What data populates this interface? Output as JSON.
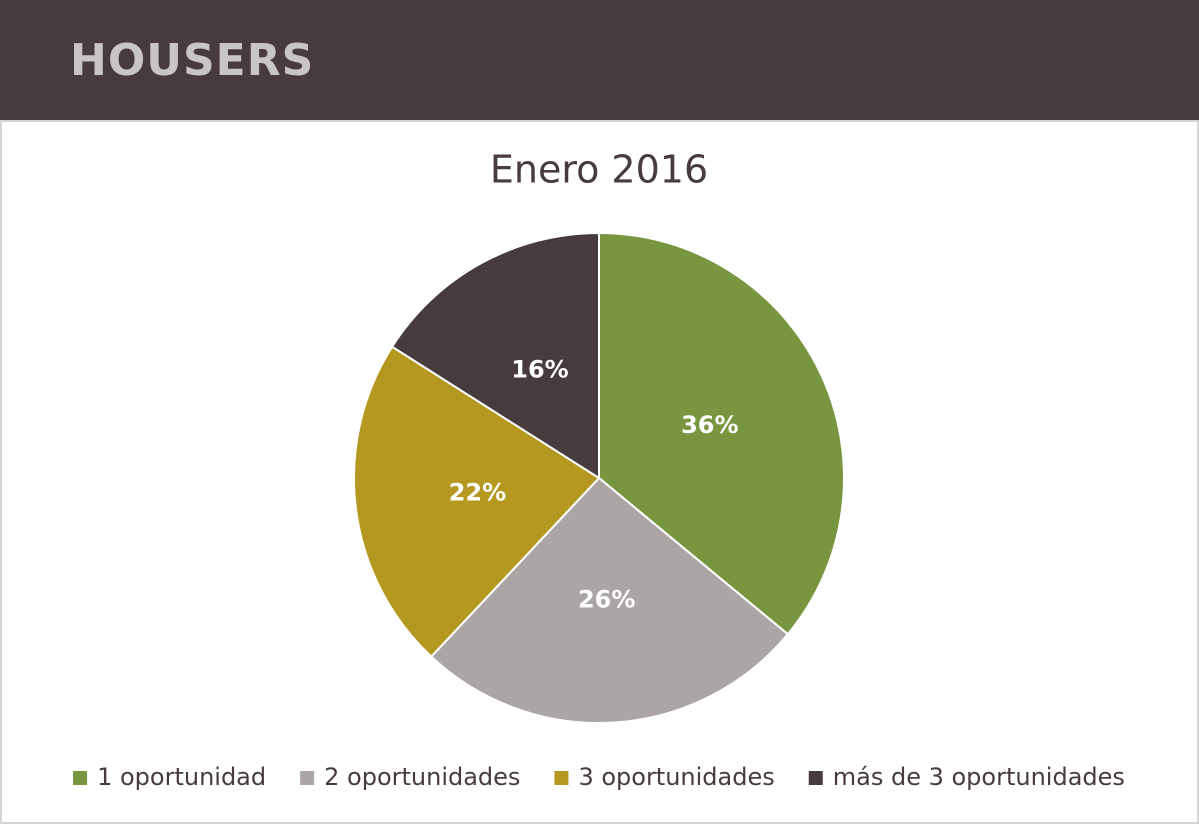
{
  "header": {
    "logo": "HOUSERS"
  },
  "chart_data": {
    "type": "pie",
    "title": "Enero 2016",
    "categories": [
      "1 oportunidad",
      "2 oportunidades",
      "3 oportunidades",
      "más de 3 oportunidades"
    ],
    "values": [
      36,
      26,
      22,
      16
    ],
    "value_labels": [
      "36%",
      "26%",
      "22%",
      "16%"
    ],
    "colors": [
      "#77963f",
      "#aba6a5",
      "#b5981f",
      "#483b3e"
    ],
    "legend": "bottom"
  }
}
